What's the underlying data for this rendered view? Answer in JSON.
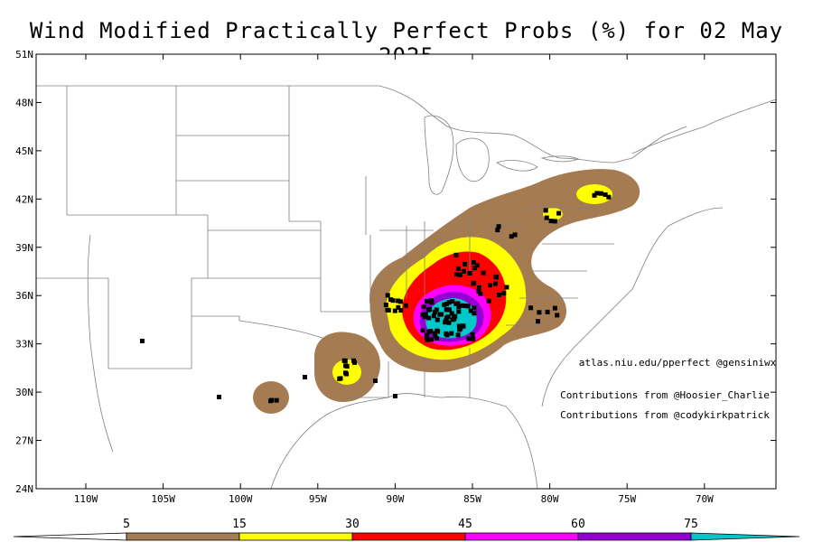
{
  "title": "Wind Modified Practically Perfect Probs (%) for 02 May 2025",
  "lat_labels": [
    "51N",
    "48N",
    "45N",
    "42N",
    "39N",
    "36N",
    "33N",
    "30N",
    "27N",
    "24N"
  ],
  "lon_labels": [
    "110W",
    "105W",
    "100W",
    "95W",
    "90W",
    "85W",
    "80W",
    "75W",
    "70W"
  ],
  "credits": {
    "source": "atlas.niu.edu/pperfect @gensiniwx",
    "contrib1": "Contributions from @Hoosier_Charlie",
    "contrib2": "Contributions from @codykirkpatrick"
  },
  "colorbar": {
    "levels": [
      "5",
      "15",
      "30",
      "45",
      "60",
      "75"
    ],
    "colors": [
      "#ffffff",
      "#a57b52",
      "#ffff00",
      "#ff0000",
      "#ff00ff",
      "#9400d3",
      "#00c8c8"
    ]
  },
  "colors": {
    "brown": "#a57b52",
    "yellow": "#ffff00",
    "red": "#ff0000",
    "magenta": "#ff00ff",
    "purple": "#9400d3",
    "cyan": "#00c8c8",
    "report": "#000000",
    "border": "#808080"
  }
}
